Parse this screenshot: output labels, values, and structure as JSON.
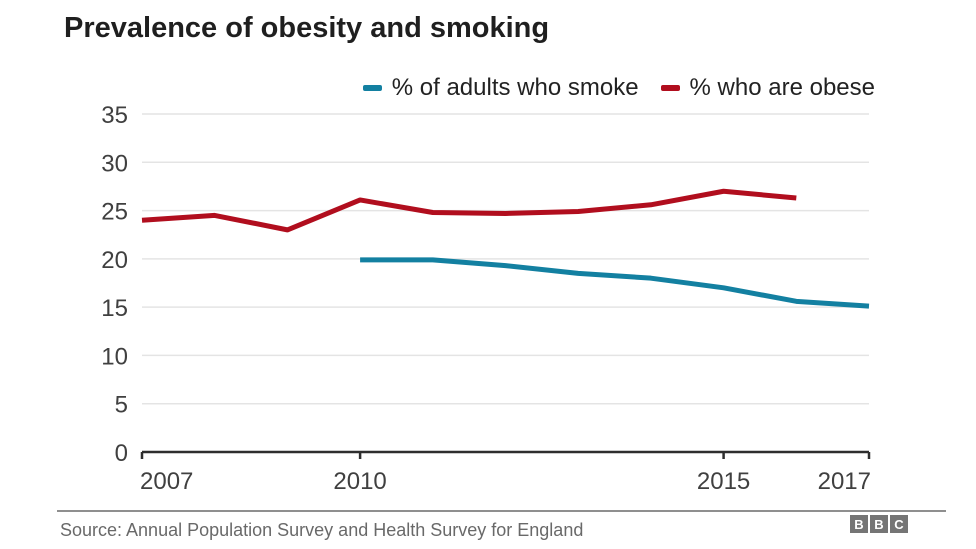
{
  "title": "Prevalence of obesity and smoking",
  "legend": [
    {
      "label": "% of adults who smoke",
      "color": "#1380A1"
    },
    {
      "label": "% who are obese",
      "color": "#B10E1E"
    }
  ],
  "chart_data": {
    "type": "line",
    "title": "Prevalence of obesity and smoking",
    "xlabel": "",
    "ylabel": "",
    "xlim": [
      2007,
      2017
    ],
    "ylim": [
      0,
      35
    ],
    "yticks": [
      0,
      5,
      10,
      15,
      20,
      25,
      30,
      35
    ],
    "xticks": [
      2007,
      2010,
      2015,
      2017
    ],
    "grid": true,
    "legend_position": "top-right",
    "series": [
      {
        "name": "% of adults who smoke",
        "color": "#1380A1",
        "x": [
          2010,
          2011,
          2012,
          2013,
          2014,
          2015,
          2016,
          2017
        ],
        "values": [
          19.9,
          19.9,
          19.3,
          18.5,
          18.0,
          17.0,
          15.6,
          15.1
        ]
      },
      {
        "name": "% who are obese",
        "color": "#B10E1E",
        "x": [
          2007,
          2008,
          2009,
          2010,
          2011,
          2012,
          2013,
          2014,
          2015,
          2016
        ],
        "values": [
          24.0,
          24.5,
          23.0,
          26.1,
          24.8,
          24.7,
          24.9,
          25.6,
          27.0,
          26.3
        ]
      }
    ],
    "axis_colors": {
      "grid": "#E4E4E4",
      "axis_line": "#2E2E2E",
      "tick_label": "#404040"
    }
  },
  "footer": {
    "source": "Source: Annual Population Survey and Health Survey for England",
    "logo_letters": [
      "B",
      "B",
      "C"
    ]
  }
}
